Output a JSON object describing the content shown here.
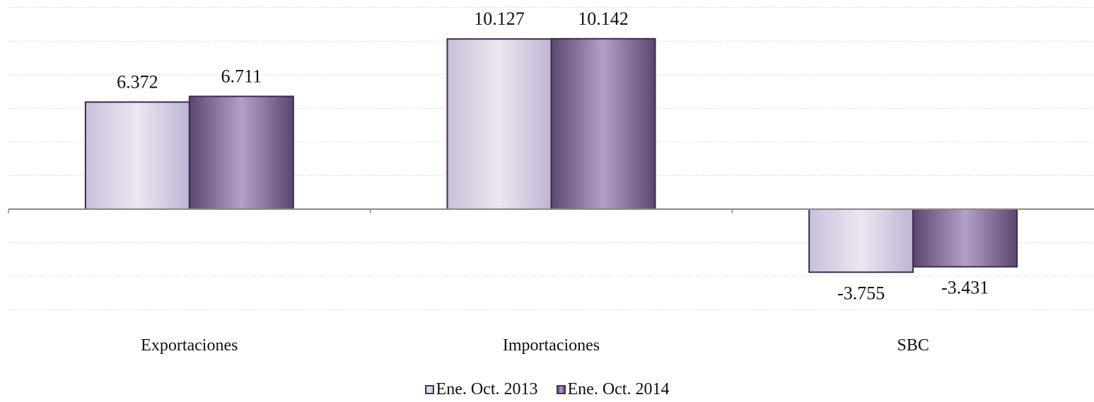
{
  "chart_data": {
    "type": "bar",
    "categories": [
      "Exportaciones",
      "Importaciones",
      "SBC"
    ],
    "series": [
      {
        "name": "Ene. Oct. 2013",
        "values": [
          6372,
          10127,
          -3755
        ],
        "labels": [
          "6.372",
          "10.127",
          "-3.755"
        ]
      },
      {
        "name": "Ene. Oct. 2014",
        "values": [
          6711,
          10142,
          -3431
        ],
        "labels": [
          "6.711",
          "10.142",
          "-3.431"
        ]
      }
    ],
    "ylim": [
      -6000,
      12000
    ],
    "grid": true,
    "legend_position": "bottom",
    "colors": {
      "series_2013": [
        "#c9c0da",
        "#ebe6f1",
        "#bfb4d3"
      ],
      "series_2014": [
        "#5b466f",
        "#b3a0c8",
        "#5b466f"
      ],
      "border": "#3d2a4e",
      "axis": "#888888",
      "grid": "#d9d9d9"
    }
  }
}
